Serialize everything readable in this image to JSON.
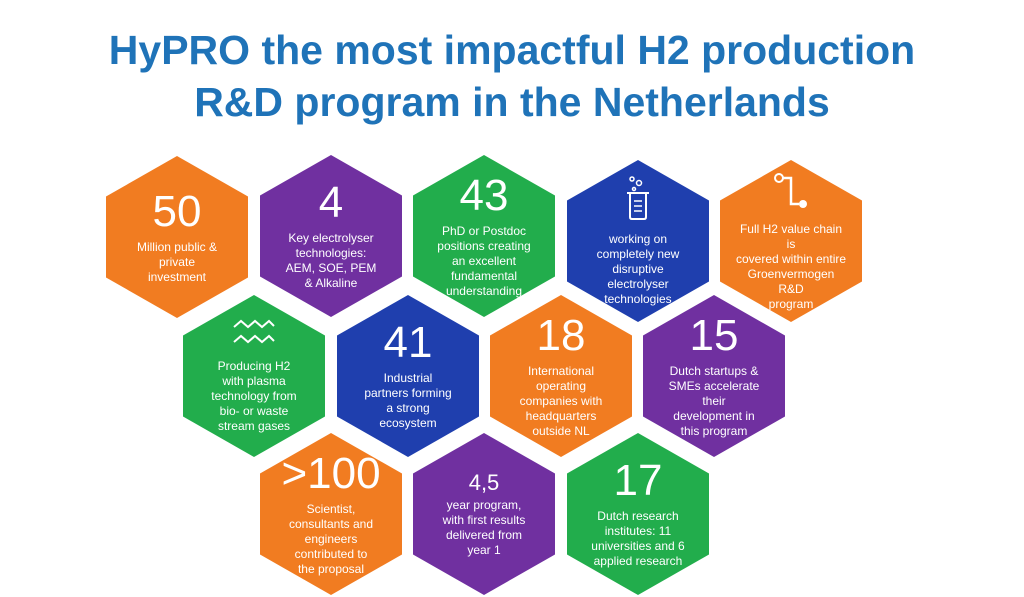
{
  "title": {
    "line1": "HyPRO the most impactful H2 production",
    "line2": "R&D program in the Netherlands"
  },
  "colors": {
    "title": "#1f73b8",
    "orange": "#f17c21",
    "purple": "#7030a0",
    "green": "#22ad4c",
    "blue": "#1f3fae"
  },
  "hexes": [
    {
      "number": "50",
      "text": "Million public &\nprivate\ninvestment",
      "color": "orange"
    },
    {
      "number": "4",
      "text": "Key electrolyser\ntechnologies:\nAEM, SOE, PEM\n& Alkaline",
      "color": "purple"
    },
    {
      "number": "43",
      "text": "PhD or Postdoc\npositions creating\nan excellent\nfundamental\nunderstanding",
      "color": "green"
    },
    {
      "icon": "beaker-icon",
      "text": "working on\ncompletely new\ndisruptive\nelectrolyser\ntechnologies",
      "color": "blue"
    },
    {
      "icon": "value-chain-icon",
      "text": "Full H2 value chain is\ncovered within entire\nGroenvermogen R&D\nprogram",
      "color": "orange"
    },
    {
      "icon": "plasma-wave-icon",
      "text": "Producing H2\nwith plasma\ntechnology from\nbio- or waste\nstream gases",
      "color": "green"
    },
    {
      "number": "41",
      "text": "Industrial\npartners forming\na strong\necosystem",
      "color": "blue"
    },
    {
      "number": "18",
      "text": "International\noperating\ncompanies with\nheadquarters\noutside NL",
      "color": "orange"
    },
    {
      "number": "15",
      "text": "Dutch startups &\nSMEs accelerate\ntheir\ndevelopment in\nthis program",
      "color": "purple"
    },
    {
      "number": ">100",
      "text": "Scientist,\nconsultants and\nengineers\ncontributed to\nthe proposal",
      "color": "orange"
    },
    {
      "number": "4,5",
      "text": "year program,\nwith first results\ndelivered from\nyear 1",
      "color": "purple"
    },
    {
      "number": "17",
      "text": "Dutch research\ninstitutes: 11\nuniversities and 6\napplied research",
      "color": "green"
    }
  ]
}
